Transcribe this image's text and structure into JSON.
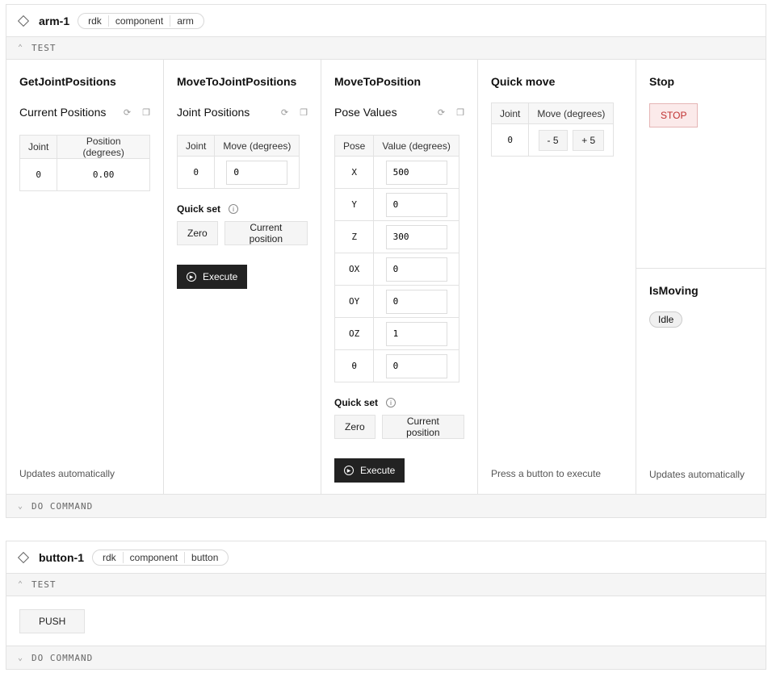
{
  "arm": {
    "name": "arm-1",
    "crumbs": [
      "rdk",
      "component",
      "arm"
    ],
    "test_label": "TEST",
    "do_command_label": "DO COMMAND",
    "get_joint": {
      "title": "GetJointPositions",
      "subtitle": "Current Positions",
      "headers": [
        "Joint",
        "Position (degrees)"
      ],
      "rows": [
        [
          "0",
          "0.00"
        ]
      ],
      "footer": "Updates automatically"
    },
    "move_joint": {
      "title": "MoveToJointPositions",
      "subtitle": "Joint Positions",
      "headers": [
        "Joint",
        "Move (degrees)"
      ],
      "rows": [
        [
          "0",
          "0"
        ]
      ],
      "quick_set": "Quick set",
      "zero": "Zero",
      "current": "Current position",
      "execute": "Execute"
    },
    "move_pos": {
      "title": "MoveToPosition",
      "subtitle": "Pose Values",
      "headers": [
        "Pose",
        "Value (degrees)"
      ],
      "rows": [
        [
          "X",
          "500"
        ],
        [
          "Y",
          "0"
        ],
        [
          "Z",
          "300"
        ],
        [
          "OX",
          "0"
        ],
        [
          "OY",
          "0"
        ],
        [
          "OZ",
          "1"
        ],
        [
          "θ",
          "0"
        ]
      ],
      "quick_set": "Quick set",
      "zero": "Zero",
      "current": "Current position",
      "execute": "Execute"
    },
    "quick_move": {
      "title": "Quick move",
      "headers": [
        "Joint",
        "Move (degrees)"
      ],
      "joint": "0",
      "minus": "- 5",
      "plus": "+ 5",
      "footer": "Press a button to execute"
    },
    "stop": {
      "title": "Stop",
      "button": "STOP"
    },
    "is_moving": {
      "title": "IsMoving",
      "status": "Idle",
      "footer": "Updates automatically"
    }
  },
  "button": {
    "name": "button-1",
    "crumbs": [
      "rdk",
      "component",
      "button"
    ],
    "test_label": "TEST",
    "push": "PUSH",
    "do_command_label": "DO COMMAND"
  }
}
